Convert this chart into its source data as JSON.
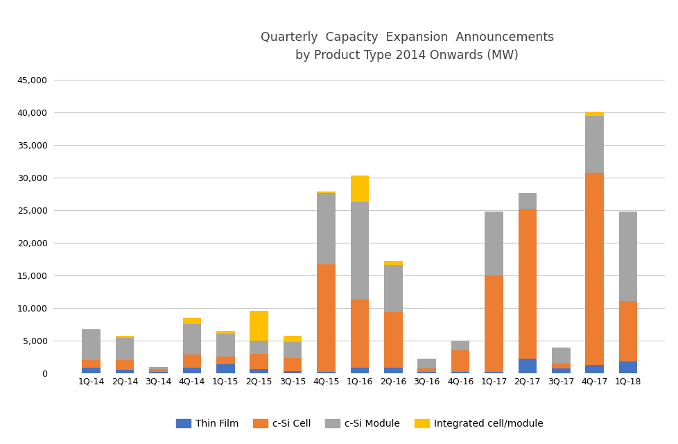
{
  "categories": [
    "1Q-14",
    "2Q-14",
    "3Q-14",
    "4Q-14",
    "1Q-15",
    "2Q-15",
    "3Q-15",
    "4Q-15",
    "1Q-16",
    "2Q-16",
    "3Q-16",
    "4Q-16",
    "1Q-17",
    "2Q-17",
    "3Q-17",
    "4Q-17",
    "1Q-18"
  ],
  "thin_film": [
    800,
    500,
    150,
    800,
    1300,
    600,
    250,
    200,
    800,
    800,
    200,
    150,
    200,
    2200,
    700,
    1200,
    1800
  ],
  "csi_cell": [
    1200,
    1500,
    400,
    2000,
    1200,
    2300,
    2000,
    16500,
    10500,
    8500,
    450,
    3300,
    14800,
    23000,
    700,
    29500,
    9200
  ],
  "csi_module": [
    4700,
    3400,
    400,
    4700,
    3500,
    2100,
    2500,
    11000,
    15000,
    7300,
    1500,
    1500,
    9800,
    2500,
    2500,
    8800,
    13800
  ],
  "integrated": [
    100,
    300,
    0,
    1000,
    500,
    4500,
    1000,
    200,
    4000,
    600,
    0,
    0,
    0,
    0,
    0,
    600,
    0
  ],
  "colors": {
    "thin_film": "#4472C4",
    "csi_cell": "#ED7D31",
    "csi_module": "#A5A5A5",
    "integrated": "#FFC000"
  },
  "title_line1": "Quarterly  Capacity  Expansion  Announcements",
  "title_line2": "by Product Type 2014 Onwards (MW)",
  "ylim": [
    0,
    45000
  ],
  "yticks": [
    0,
    5000,
    10000,
    15000,
    20000,
    25000,
    30000,
    35000,
    40000,
    45000
  ],
  "legend_labels": [
    "Thin Film",
    "c-Si Cell",
    "c-Si Module",
    "Integrated cell/module"
  ],
  "background_color": "#FFFFFF",
  "grid_color": "#C8C8C8",
  "bar_width": 0.55,
  "tick_fontsize": 9,
  "title_fontsize": 12.5,
  "legend_fontsize": 10
}
